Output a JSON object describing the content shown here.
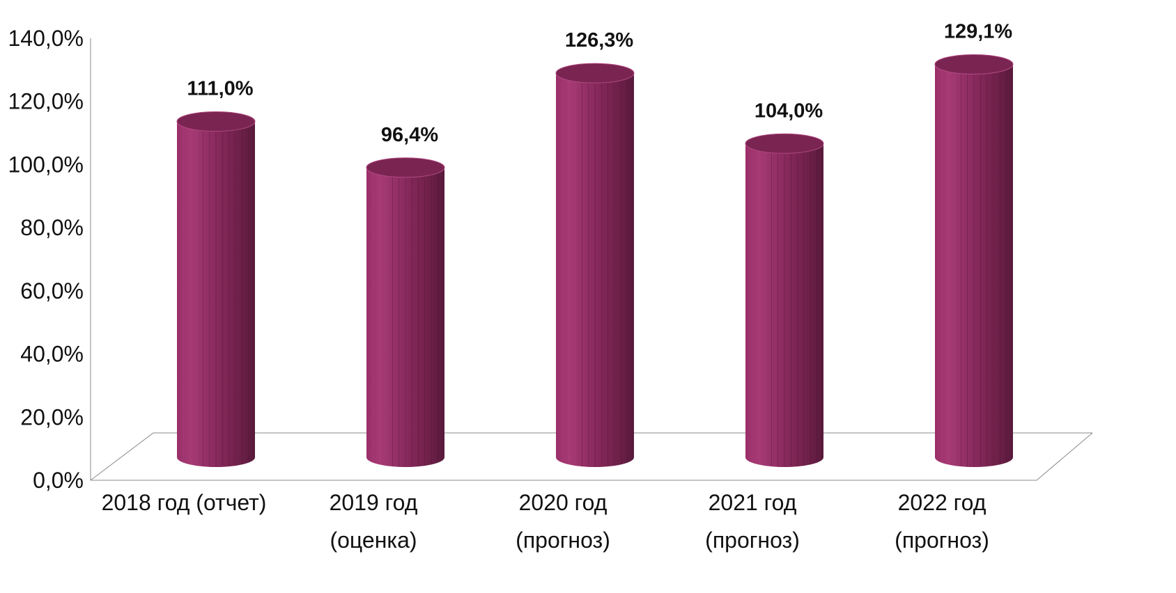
{
  "chart_data": {
    "type": "bar",
    "style": "3d-cylinder",
    "categories": [
      [
        "2018 год (отчет)"
      ],
      [
        "2019 год",
        "(оценка)"
      ],
      [
        "2020 год",
        "(прогноз)"
      ],
      [
        "2021 год",
        "(прогноз)"
      ],
      [
        "2022 год",
        "(прогноз)"
      ]
    ],
    "values": [
      111.0,
      96.4,
      126.3,
      104.0,
      129.1
    ],
    "data_labels": [
      "111,0%",
      "96,4%",
      "126,3%",
      "104,0%",
      "129,1%"
    ],
    "yticks": [
      "0,0%",
      "20,0%",
      "40,0%",
      "60,0%",
      "80,0%",
      "100,0%",
      "120,0%",
      "140,0%"
    ],
    "ylim": [
      0,
      140
    ],
    "title": "",
    "xlabel": "",
    "ylabel": "",
    "grid": false,
    "legend": "none",
    "colors": {
      "bar": "#8a2a5e",
      "bar_light": "#a63a74",
      "bar_dark": "#5e1a3f",
      "top": "#7a2452",
      "floor_line": "#888888"
    }
  }
}
